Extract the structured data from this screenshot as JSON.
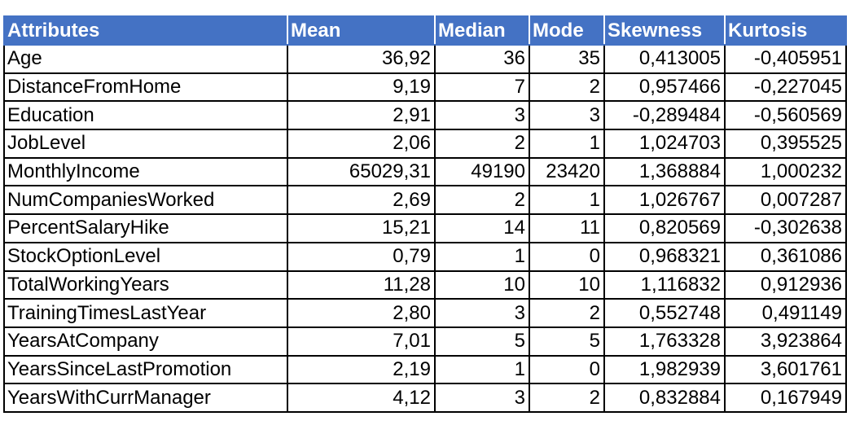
{
  "table": {
    "headers": [
      "Attributes",
      "Mean",
      "Median",
      "Mode",
      "Skewness",
      "Kurtosis"
    ],
    "rows": [
      [
        "Age",
        "36,92",
        "36",
        "35",
        "0,413005",
        "-0,405951"
      ],
      [
        "DistanceFromHome",
        "9,19",
        "7",
        "2",
        "0,957466",
        "-0,227045"
      ],
      [
        "Education",
        "2,91",
        "3",
        "3",
        "-0,289484",
        "-0,560569"
      ],
      [
        "JobLevel",
        "2,06",
        "2",
        "1",
        "1,024703",
        "0,395525"
      ],
      [
        "MonthlyIncome",
        "65029,31",
        "49190",
        "23420",
        "1,368884",
        "1,000232"
      ],
      [
        "NumCompaniesWorked",
        "2,69",
        "2",
        "1",
        "1,026767",
        "0,007287"
      ],
      [
        "PercentSalaryHike",
        "15,21",
        "14",
        "11",
        "0,820569",
        "-0,302638"
      ],
      [
        "StockOptionLevel",
        "0,79",
        "1",
        "0",
        "0,968321",
        "0,361086"
      ],
      [
        "TotalWorkingYears",
        "11,28",
        "10",
        "10",
        "1,116832",
        "0,912936"
      ],
      [
        "TrainingTimesLastYear",
        "2,80",
        "3",
        "2",
        "0,552748",
        "0,491149"
      ],
      [
        "YearsAtCompany",
        "7,01",
        "5",
        "5",
        "1,763328",
        "3,923864"
      ],
      [
        "YearsSinceLastPromotion",
        "2,19",
        "1",
        "0",
        "1,982939",
        "3,601761"
      ],
      [
        "YearsWithCurrManager",
        "4,12",
        "3",
        "2",
        "0,832884",
        "0,167949"
      ]
    ]
  },
  "colors": {
    "header_background": "#4472c4",
    "header_text": "#ffffff",
    "border": "#000000"
  }
}
